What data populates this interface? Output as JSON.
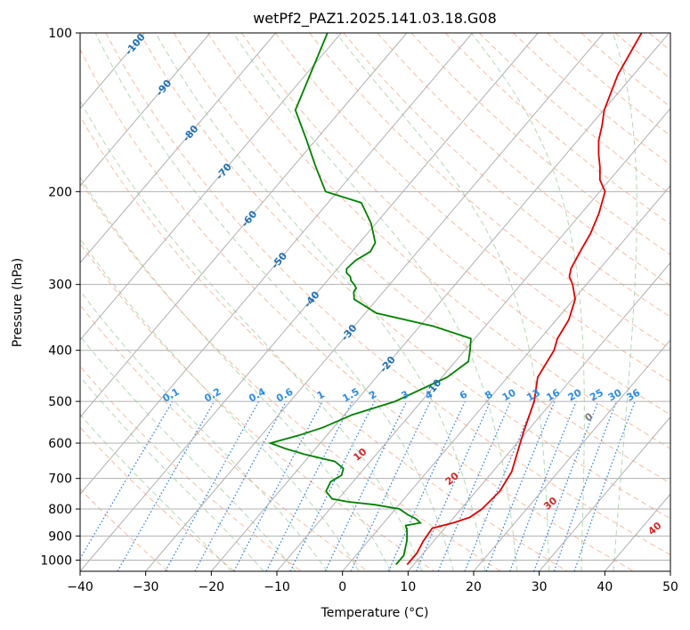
{
  "chart_data": {
    "type": "line",
    "title": "wetPf2_PAZ1.2025.141.03.18.G08",
    "xlabel": "Temperature (°C)",
    "ylabel": "Pressure (hPa)",
    "xlim": [
      -40,
      50
    ],
    "ylim": [
      1050,
      100
    ],
    "y_scale": "log",
    "x_ticks": [
      "−40",
      "−30",
      "−20",
      "−10",
      "0",
      "10",
      "20",
      "30",
      "40",
      "50"
    ],
    "x_tick_values": [
      -40,
      -30,
      -20,
      -10,
      0,
      10,
      20,
      30,
      40,
      50
    ],
    "y_ticks": [
      "100",
      "200",
      "300",
      "400",
      "500",
      "600",
      "700",
      "800",
      "900",
      "1000"
    ],
    "y_tick_values": [
      100,
      200,
      300,
      400,
      500,
      600,
      700,
      800,
      900,
      1000
    ],
    "grid": true,
    "colors": {
      "temperature": "#e00000",
      "dewpoint": "#008000",
      "isotherm_label": "#1f6fb4",
      "mixing_ratio": "#2b8ce8",
      "dry_adiabat_label": "#d62728"
    },
    "series": [
      {
        "color": "#e00000",
        "x": [
          9.0,
          9.0,
          8.4,
          8.1,
          10.6,
          12.4,
          13.2,
          13.6,
          12.9,
          10.8,
          9.5,
          7.2,
          4.6,
          3.6,
          2.6,
          1.9,
          0.2,
          -2.1,
          -3.6,
          -4.4,
          -5.2,
          -6.0,
          -7.3,
          -9.2,
          -11.5,
          -13.1,
          -15.0,
          -16.8,
          -18.2,
          -19.9,
          -22.4,
          -24.2
        ],
        "y": [
          1020,
          970,
          920,
          870,
          850,
          830,
          800,
          740,
          680,
          610,
          570,
          500,
          450,
          400,
          380,
          350,
          320,
          300,
          290,
          280,
          260,
          240,
          220,
          200,
          190,
          180,
          170,
          160,
          150,
          140,
          120,
          100
        ]
      },
      {
        "color": "#008000",
        "x": [
          7.3,
          7.3,
          5.9,
          4.6,
          3.7,
          5.6,
          4.4,
          2.6,
          0.6,
          -3.7,
          -8.2,
          -11.0,
          -12.9,
          -13.4,
          -12.6,
          -13.2,
          -15.4,
          -20.9,
          -24.5,
          -27.6,
          -24.3,
          -21.6,
          -18.8,
          -14.0,
          -9.2,
          -8.0,
          -9.2,
          -10.6,
          -17.9,
          -28.3,
          -33.5,
          -34.5,
          -34.6,
          -35.4,
          -36.4,
          -37.0,
          -38.1,
          -38.6,
          -38.3,
          -37.2,
          -37.6,
          -40.7,
          -44.9,
          -51.8,
          -56.4,
          -61.3,
          -67.0,
          -72.1
        ],
        "y": [
          1020,
          980,
          920,
          880,
          860,
          850,
          835,
          820,
          800,
          785,
          775,
          765,
          740,
          710,
          690,
          670,
          650,
          630,
          615,
          600,
          580,
          560,
          530,
          500,
          450,
          420,
          400,
          380,
          360,
          340,
          320,
          310,
          305,
          300,
          295,
          290,
          285,
          280,
          270,
          260,
          250,
          230,
          210,
          200,
          180,
          160,
          140,
          100
        ]
      }
    ],
    "isotherm_labels": [
      "-100",
      "-90",
      "-80",
      "-70",
      "-60",
      "-50",
      "-40",
      "-30",
      "-20",
      "-10"
    ],
    "isotherm_label_values": [
      -100,
      -90,
      -80,
      -70,
      -60,
      -50,
      -40,
      -30,
      -20,
      -10
    ],
    "isotherm_label_pressure": [
      105,
      127,
      155,
      183,
      225,
      270,
      320,
      370,
      425,
      470
    ],
    "mixing_ratio_labels": [
      "0.1",
      "0.2",
      "0.4",
      "0.6",
      "1",
      "1.5",
      "2",
      "3",
      "4",
      "6",
      "8",
      "10",
      "13",
      "16",
      "20",
      "25",
      "30",
      "36"
    ],
    "mixing_ratio_values": [
      0.1,
      0.2,
      0.4,
      0.6,
      1,
      1.5,
      2,
      3,
      4,
      6,
      8,
      10,
      13,
      16,
      20,
      25,
      30,
      36
    ],
    "zero_label": "0",
    "dry_adiabat_labels": [
      "10",
      "20",
      "30",
      "40"
    ],
    "dry_adiabat_label_values": [
      10,
      20,
      30,
      40
    ],
    "dry_adiabat_label_pressure": [
      630,
      700,
      780,
      870
    ]
  }
}
